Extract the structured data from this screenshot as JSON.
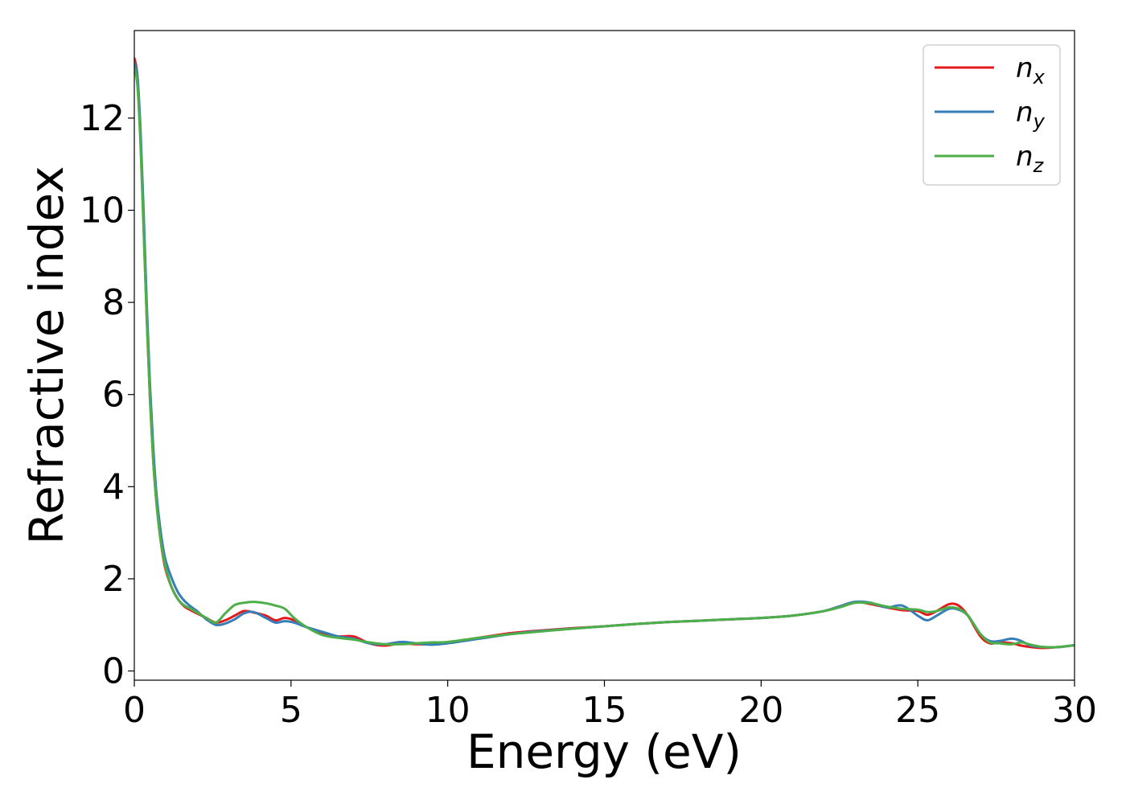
{
  "chart_data": {
    "type": "line",
    "xlabel": "Energy (eV)",
    "ylabel": "Refractive index",
    "xlim": [
      0,
      30
    ],
    "ylim": [
      -0.2,
      13.9
    ],
    "xticks": [
      0,
      5,
      10,
      15,
      20,
      25,
      30
    ],
    "yticks": [
      0,
      2,
      4,
      6,
      8,
      10,
      12
    ],
    "grid": false,
    "legend_position": "top-right",
    "series": [
      {
        "name": "n",
        "subscript": "x",
        "color": "#e41a1c",
        "x": [
          0,
          0.1,
          0.2,
          0.3,
          0.4,
          0.5,
          0.6,
          0.7,
          0.8,
          0.9,
          1.0,
          1.2,
          1.4,
          1.6,
          1.8,
          2.0,
          2.3,
          2.6,
          2.9,
          3.2,
          3.5,
          3.8,
          4.2,
          4.5,
          4.8,
          5.1,
          5.5,
          6.0,
          6.5,
          7.0,
          7.5,
          8.0,
          8.5,
          9.0,
          9.5,
          10,
          11,
          12,
          13,
          14,
          15,
          16,
          17,
          18,
          19,
          20,
          21,
          22,
          22.5,
          23,
          23.5,
          24,
          24.5,
          25,
          25.3,
          25.6,
          26,
          26.3,
          26.6,
          27,
          27.3,
          27.6,
          28,
          28.3,
          28.6,
          29,
          29.5,
          30
        ],
        "values": [
          13.3,
          12.9,
          11.5,
          9.6,
          7.6,
          5.9,
          4.6,
          3.7,
          3.05,
          2.55,
          2.2,
          1.8,
          1.55,
          1.4,
          1.32,
          1.25,
          1.15,
          1.05,
          1.1,
          1.2,
          1.3,
          1.27,
          1.2,
          1.1,
          1.15,
          1.1,
          0.95,
          0.8,
          0.75,
          0.75,
          0.6,
          0.55,
          0.6,
          0.58,
          0.58,
          0.62,
          0.72,
          0.82,
          0.88,
          0.93,
          0.97,
          1.02,
          1.06,
          1.09,
          1.12,
          1.15,
          1.2,
          1.3,
          1.4,
          1.5,
          1.45,
          1.38,
          1.32,
          1.3,
          1.22,
          1.3,
          1.45,
          1.42,
          1.2,
          0.75,
          0.6,
          0.62,
          0.6,
          0.55,
          0.52,
          0.5,
          0.52,
          0.56
        ]
      },
      {
        "name": "n",
        "subscript": "y",
        "color": "#377eb8",
        "x": [
          0,
          0.1,
          0.2,
          0.3,
          0.4,
          0.5,
          0.6,
          0.7,
          0.8,
          0.9,
          1.0,
          1.2,
          1.4,
          1.6,
          1.8,
          2.0,
          2.3,
          2.6,
          2.9,
          3.2,
          3.5,
          3.8,
          4.2,
          4.5,
          4.8,
          5.1,
          5.5,
          6.0,
          6.5,
          7.0,
          7.5,
          8.0,
          8.5,
          9.0,
          9.5,
          10,
          11,
          12,
          13,
          14,
          15,
          16,
          17,
          18,
          19,
          20,
          21,
          22,
          22.5,
          23,
          23.5,
          24,
          24.5,
          25,
          25.3,
          25.6,
          26,
          26.3,
          26.6,
          27,
          27.3,
          27.6,
          28,
          28.3,
          28.6,
          29,
          29.5,
          30
        ],
        "values": [
          13.2,
          12.9,
          11.7,
          9.9,
          7.9,
          6.2,
          4.9,
          3.9,
          3.25,
          2.75,
          2.4,
          2.0,
          1.7,
          1.52,
          1.4,
          1.3,
          1.12,
          1.0,
          1.03,
          1.12,
          1.25,
          1.28,
          1.15,
          1.05,
          1.08,
          1.05,
          0.95,
          0.85,
          0.75,
          0.7,
          0.6,
          0.58,
          0.63,
          0.6,
          0.57,
          0.6,
          0.7,
          0.8,
          0.87,
          0.92,
          0.97,
          1.02,
          1.06,
          1.09,
          1.12,
          1.15,
          1.2,
          1.3,
          1.4,
          1.5,
          1.48,
          1.38,
          1.42,
          1.2,
          1.1,
          1.2,
          1.35,
          1.33,
          1.2,
          0.8,
          0.65,
          0.65,
          0.7,
          0.65,
          0.55,
          0.52,
          0.52,
          0.56
        ]
      },
      {
        "name": "n",
        "subscript": "z",
        "color": "#4daf4a",
        "x": [
          0,
          0.1,
          0.2,
          0.3,
          0.4,
          0.5,
          0.6,
          0.7,
          0.8,
          0.9,
          1.0,
          1.2,
          1.4,
          1.6,
          1.8,
          2.0,
          2.3,
          2.6,
          2.9,
          3.2,
          3.5,
          3.8,
          4.2,
          4.5,
          4.8,
          5.1,
          5.5,
          6.0,
          6.5,
          7.0,
          7.5,
          8.0,
          8.5,
          9.0,
          9.5,
          10,
          11,
          12,
          13,
          14,
          15,
          16,
          17,
          18,
          19,
          20,
          21,
          22,
          22.5,
          23,
          23.5,
          24,
          24.5,
          25,
          25.3,
          25.6,
          26,
          26.3,
          26.6,
          27,
          27.3,
          27.6,
          28,
          28.3,
          28.6,
          29,
          29.5,
          30
        ],
        "values": [
          13.1,
          12.7,
          11.4,
          9.5,
          7.6,
          5.9,
          4.6,
          3.7,
          3.05,
          2.58,
          2.25,
          1.8,
          1.55,
          1.42,
          1.35,
          1.27,
          1.15,
          1.05,
          1.25,
          1.43,
          1.48,
          1.5,
          1.47,
          1.42,
          1.35,
          1.15,
          0.95,
          0.78,
          0.72,
          0.68,
          0.62,
          0.58,
          0.58,
          0.6,
          0.62,
          0.63,
          0.72,
          0.8,
          0.86,
          0.92,
          0.97,
          1.02,
          1.06,
          1.09,
          1.12,
          1.15,
          1.2,
          1.3,
          1.38,
          1.48,
          1.47,
          1.4,
          1.35,
          1.33,
          1.28,
          1.3,
          1.38,
          1.35,
          1.2,
          0.8,
          0.62,
          0.6,
          0.58,
          0.62,
          0.57,
          0.52,
          0.52,
          0.56
        ]
      }
    ]
  }
}
